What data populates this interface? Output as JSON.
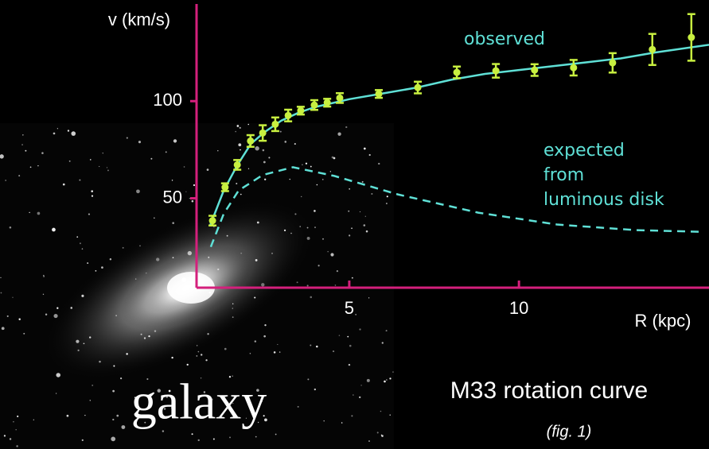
{
  "chart_data": {
    "type": "scatter",
    "title": "M33 rotation curve",
    "subtitle": "(fig. 1)",
    "caption": "galaxy",
    "x_label": "R (kpc)",
    "y_label": "v (km/s)",
    "xlim": [
      0.5,
      15.6
    ],
    "ylim": [
      4,
      150
    ],
    "xticks": [
      5,
      10
    ],
    "yticks": [
      50,
      100
    ],
    "axis_color": "#d4207c",
    "series": [
      {
        "name": "observed",
        "type": "errorbar",
        "color": "#c8f040",
        "x": [
          0.97,
          1.34,
          1.7,
          2.09,
          2.45,
          2.82,
          3.2,
          3.57,
          3.97,
          4.35,
          4.72,
          5.87,
          7.02,
          8.17,
          9.32,
          10.46,
          11.61,
          12.76,
          13.93,
          15.08
        ],
        "values": [
          38.5,
          55.7,
          67.2,
          79.5,
          83.6,
          88.1,
          92.6,
          95.1,
          98,
          99.2,
          101.6,
          103.7,
          107,
          114.8,
          115.6,
          116,
          117.2,
          119.7,
          126.6,
          132.8
        ],
        "errors": [
          2.5,
          2,
          2.5,
          3,
          4,
          3.5,
          3,
          2,
          2.5,
          2,
          2.5,
          2,
          3,
          3,
          3.5,
          3,
          4,
          5,
          8,
          12
        ]
      },
      {
        "type": "line",
        "color": "#5fe0d6",
        "x": [
          0.9,
          1.3,
          1.7,
          2.1,
          2.5,
          3,
          3.5,
          4,
          5,
          6,
          7,
          8,
          9,
          10,
          11,
          12,
          13,
          14,
          15.6
        ],
        "values": [
          36,
          54,
          67,
          78,
          84,
          90,
          94,
          97,
          101,
          104,
          107,
          111,
          114,
          116,
          118,
          120,
          122,
          125,
          129
        ]
      },
      {
        "name": "expected\nfrom\nluminous disk",
        "type": "line",
        "dashed": true,
        "color": "#5fe0d6",
        "x": [
          0.92,
          1.3,
          1.74,
          2.45,
          3.34,
          4.56,
          6.43,
          8.8,
          11.12,
          13.46,
          15.3
        ],
        "values": [
          25,
          42,
          54,
          62,
          66,
          61.5,
          52,
          42.6,
          36.5,
          33.6,
          32.8
        ]
      }
    ]
  }
}
